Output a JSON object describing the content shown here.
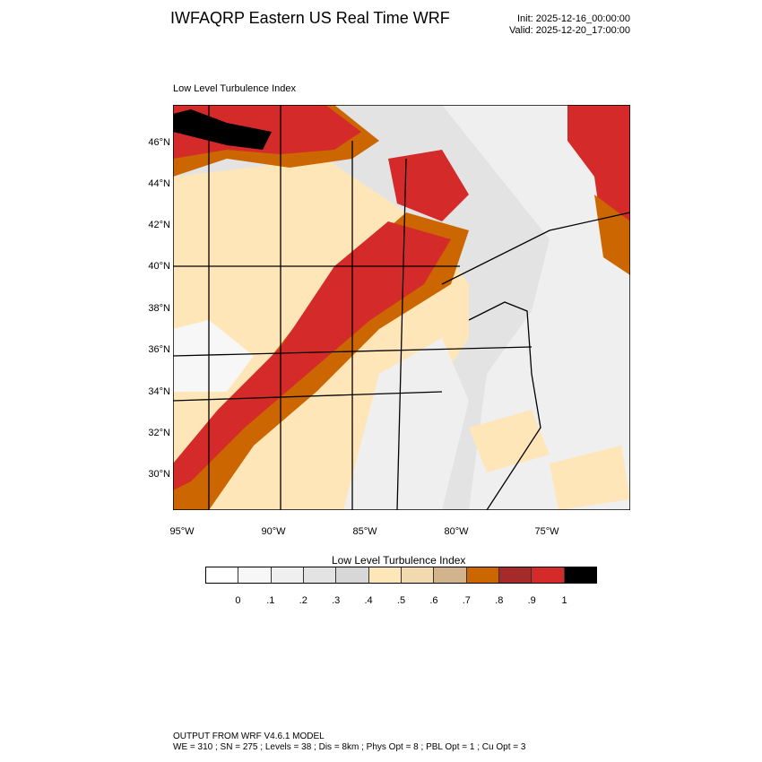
{
  "header": {
    "title": "IWFAQRP Eastern US Real Time WRF",
    "init": "Init: 2025-12-16_00:00:00",
    "valid": "Valid: 2025-12-20_17:00:00"
  },
  "map": {
    "subtitle": "Low Level Turbulence Index",
    "lat_labels": [
      "46°N",
      "44°N",
      "42°N",
      "40°N",
      "38°N",
      "36°N",
      "34°N",
      "32°N",
      "30°N"
    ],
    "lon_labels": [
      "95°W",
      "90°W",
      "85°W",
      "80°W",
      "75°W"
    ]
  },
  "colorbar": {
    "title": "Low Level Turbulence Index",
    "colors": [
      "#ffffff",
      "#f7f7f7",
      "#efefef",
      "#e3e3e3",
      "#d7d7d7",
      "#ffe6b8",
      "#f2d9ae",
      "#d2b48c",
      "#cc6600",
      "#a52a2a",
      "#d42a2a",
      "#000000"
    ],
    "labels": [
      "0",
      ".1",
      ".2",
      ".3",
      ".4",
      ".5",
      ".6",
      ".7",
      ".8",
      ".9",
      "1"
    ]
  },
  "footer": {
    "line1": "OUTPUT FROM WRF V4.6.1 MODEL",
    "line2": "WE = 310 ; SN = 275 ; Levels = 38 ; Dis = 8km ; Phys Opt = 8 ; PBL Opt = 1 ; Cu Opt = 3"
  }
}
